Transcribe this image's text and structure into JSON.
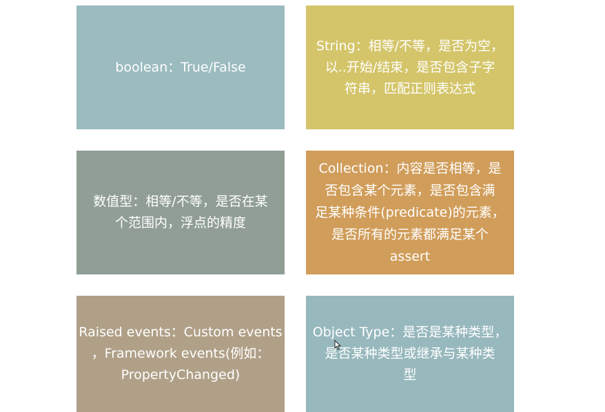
{
  "colors": {
    "card_blue_gray": "#9bbbbf",
    "card_yellow": "#d4c56a",
    "card_gray_green": "#909e96",
    "card_orange": "#d09d5a",
    "card_tan": "#b0a088",
    "card_light_blue": "#97b8bd",
    "text": "#ffffff"
  },
  "cards": [
    {
      "lines": [
        "boolean：True/False"
      ]
    },
    {
      "lines": [
        "String：相等/不等，是否为空，",
        "以..开始/结束，是否包含子字",
        "符串，匹配正则表达式"
      ]
    },
    {
      "lines": [
        "数值型：相等/不等，是否在某",
        "个范围内，浮点的精度"
      ]
    },
    {
      "lines": [
        "Collection：内容是否相等，是",
        "否包含某个元素，是否包含满",
        "足某种条件(predicate)的元素，",
        "是否所有的元素都满足某个",
        "assert"
      ]
    },
    {
      "lines": [
        "Raised events：Custom events",
        "，Framework events(例如：",
        "PropertyChanged)"
      ]
    },
    {
      "lines": [
        "Object Type：是否是某种类型，",
        "是否某种类型或继承与某种类",
        "型"
      ]
    }
  ]
}
